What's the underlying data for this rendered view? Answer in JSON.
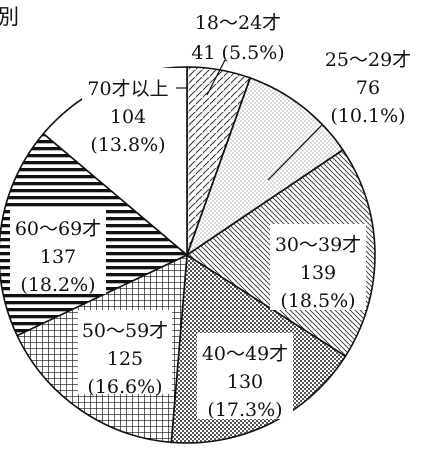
{
  "title_fragment": "別",
  "chart_data": {
    "type": "pie",
    "start_angle_deg": 0,
    "direction": "clockwise",
    "slices": [
      {
        "label": "18〜24才",
        "value": 41,
        "percent": "5.5%",
        "value_text": "41",
        "percent_text": "(5.5%)",
        "line2": "41 (5.5%)",
        "pattern": "diag-right"
      },
      {
        "label": "25〜29才",
        "value": 76,
        "percent": "10.1%",
        "value_text": "76",
        "percent_text": "(10.1%)",
        "pattern": "fine-dots"
      },
      {
        "label": "30〜39才",
        "value": 139,
        "percent": "18.5%",
        "value_text": "139",
        "percent_text": "(18.5%)",
        "pattern": "diag-left"
      },
      {
        "label": "40〜49才",
        "value": 130,
        "percent": "17.3%",
        "value_text": "130",
        "percent_text": "(17.3%)",
        "pattern": "dense-check"
      },
      {
        "label": "50〜59才",
        "value": 125,
        "percent": "16.6%",
        "value_text": "125",
        "percent_text": "(16.6%)",
        "pattern": "grid"
      },
      {
        "label": "60〜69才",
        "value": 137,
        "percent": "18.2%",
        "value_text": "137",
        "percent_text": "(18.2%)",
        "pattern": "horizontal"
      },
      {
        "label": "70才以上",
        "value": 104,
        "percent": "13.8%",
        "value_text": "104",
        "percent_text": "(13.8%)",
        "pattern": "white"
      }
    ],
    "colors": {
      "stroke": "#111111",
      "fill": "#ffffff",
      "pattern_ink": "#333333"
    }
  }
}
